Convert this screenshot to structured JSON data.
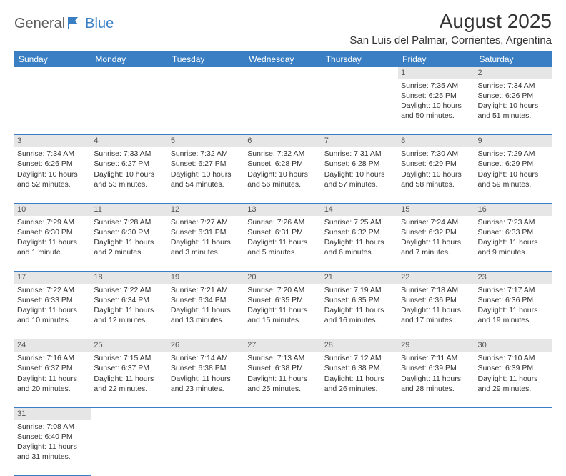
{
  "logo": {
    "part1": "General",
    "part2": "Blue"
  },
  "header": {
    "month_title": "August 2025",
    "location": "San Luis del Palmar, Corrientes, Argentina"
  },
  "style": {
    "header_bg": "#3a7fc4",
    "header_fg": "#ffffff",
    "daynum_bg": "#e6e6e6",
    "border_color": "#3a7fc4",
    "body_fontsize": 10.5,
    "th_fontsize": 12,
    "title_fontsize": 28,
    "location_fontsize": 15
  },
  "weekdays": [
    "Sunday",
    "Monday",
    "Tuesday",
    "Wednesday",
    "Thursday",
    "Friday",
    "Saturday"
  ],
  "first_weekday": 5,
  "days_in_month": 31,
  "days": {
    "1": {
      "sunrise": "7:35 AM",
      "sunset": "6:25 PM",
      "daylight": "10 hours and 50 minutes."
    },
    "2": {
      "sunrise": "7:34 AM",
      "sunset": "6:26 PM",
      "daylight": "10 hours and 51 minutes."
    },
    "3": {
      "sunrise": "7:34 AM",
      "sunset": "6:26 PM",
      "daylight": "10 hours and 52 minutes."
    },
    "4": {
      "sunrise": "7:33 AM",
      "sunset": "6:27 PM",
      "daylight": "10 hours and 53 minutes."
    },
    "5": {
      "sunrise": "7:32 AM",
      "sunset": "6:27 PM",
      "daylight": "10 hours and 54 minutes."
    },
    "6": {
      "sunrise": "7:32 AM",
      "sunset": "6:28 PM",
      "daylight": "10 hours and 56 minutes."
    },
    "7": {
      "sunrise": "7:31 AM",
      "sunset": "6:28 PM",
      "daylight": "10 hours and 57 minutes."
    },
    "8": {
      "sunrise": "7:30 AM",
      "sunset": "6:29 PM",
      "daylight": "10 hours and 58 minutes."
    },
    "9": {
      "sunrise": "7:29 AM",
      "sunset": "6:29 PM",
      "daylight": "10 hours and 59 minutes."
    },
    "10": {
      "sunrise": "7:29 AM",
      "sunset": "6:30 PM",
      "daylight": "11 hours and 1 minute."
    },
    "11": {
      "sunrise": "7:28 AM",
      "sunset": "6:30 PM",
      "daylight": "11 hours and 2 minutes."
    },
    "12": {
      "sunrise": "7:27 AM",
      "sunset": "6:31 PM",
      "daylight": "11 hours and 3 minutes."
    },
    "13": {
      "sunrise": "7:26 AM",
      "sunset": "6:31 PM",
      "daylight": "11 hours and 5 minutes."
    },
    "14": {
      "sunrise": "7:25 AM",
      "sunset": "6:32 PM",
      "daylight": "11 hours and 6 minutes."
    },
    "15": {
      "sunrise": "7:24 AM",
      "sunset": "6:32 PM",
      "daylight": "11 hours and 7 minutes."
    },
    "16": {
      "sunrise": "7:23 AM",
      "sunset": "6:33 PM",
      "daylight": "11 hours and 9 minutes."
    },
    "17": {
      "sunrise": "7:22 AM",
      "sunset": "6:33 PM",
      "daylight": "11 hours and 10 minutes."
    },
    "18": {
      "sunrise": "7:22 AM",
      "sunset": "6:34 PM",
      "daylight": "11 hours and 12 minutes."
    },
    "19": {
      "sunrise": "7:21 AM",
      "sunset": "6:34 PM",
      "daylight": "11 hours and 13 minutes."
    },
    "20": {
      "sunrise": "7:20 AM",
      "sunset": "6:35 PM",
      "daylight": "11 hours and 15 minutes."
    },
    "21": {
      "sunrise": "7:19 AM",
      "sunset": "6:35 PM",
      "daylight": "11 hours and 16 minutes."
    },
    "22": {
      "sunrise": "7:18 AM",
      "sunset": "6:36 PM",
      "daylight": "11 hours and 17 minutes."
    },
    "23": {
      "sunrise": "7:17 AM",
      "sunset": "6:36 PM",
      "daylight": "11 hours and 19 minutes."
    },
    "24": {
      "sunrise": "7:16 AM",
      "sunset": "6:37 PM",
      "daylight": "11 hours and 20 minutes."
    },
    "25": {
      "sunrise": "7:15 AM",
      "sunset": "6:37 PM",
      "daylight": "11 hours and 22 minutes."
    },
    "26": {
      "sunrise": "7:14 AM",
      "sunset": "6:38 PM",
      "daylight": "11 hours and 23 minutes."
    },
    "27": {
      "sunrise": "7:13 AM",
      "sunset": "6:38 PM",
      "daylight": "11 hours and 25 minutes."
    },
    "28": {
      "sunrise": "7:12 AM",
      "sunset": "6:38 PM",
      "daylight": "11 hours and 26 minutes."
    },
    "29": {
      "sunrise": "7:11 AM",
      "sunset": "6:39 PM",
      "daylight": "11 hours and 28 minutes."
    },
    "30": {
      "sunrise": "7:10 AM",
      "sunset": "6:39 PM",
      "daylight": "11 hours and 29 minutes."
    },
    "31": {
      "sunrise": "7:08 AM",
      "sunset": "6:40 PM",
      "daylight": "11 hours and 31 minutes."
    }
  },
  "labels": {
    "sunrise": "Sunrise:",
    "sunset": "Sunset:",
    "daylight": "Daylight:"
  }
}
